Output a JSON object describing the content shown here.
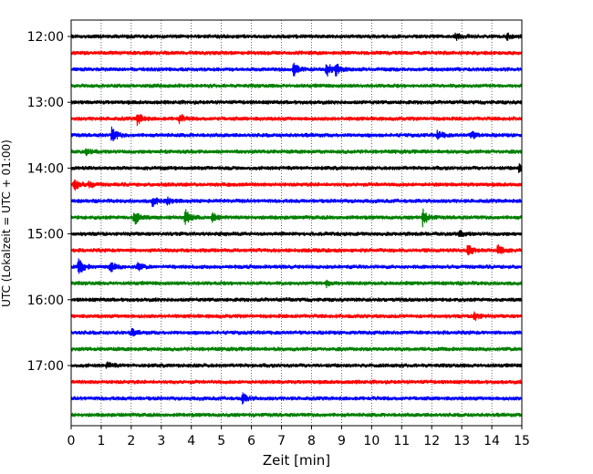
{
  "chart_data": {
    "type": "line",
    "title": "",
    "xlabel": "Zeit  [min]",
    "ylabel": "UTC (Lokalzeit = UTC + 01:00)",
    "xlim": [
      0,
      15
    ],
    "x_ticks": [
      0,
      1,
      2,
      3,
      4,
      5,
      6,
      7,
      8,
      9,
      10,
      11,
      12,
      13,
      14,
      15
    ],
    "x_tick_labels": [
      "0",
      "1",
      "2",
      "3",
      "4",
      "5",
      "6",
      "7",
      "8",
      "9",
      "10",
      "11",
      "12",
      "13",
      "14",
      "15"
    ],
    "y_tick_labels": [
      "12:00",
      "13:00",
      "14:00",
      "15:00",
      "16:00",
      "17:00"
    ],
    "trace_interval_minutes": 15,
    "grid": "vertical dotted",
    "colors": [
      "#000000",
      "#ff0000",
      "#0000ff",
      "#008000"
    ],
    "traces": [
      {
        "start": "12:00",
        "color": "#000000",
        "events": [
          [
            12.8,
            0.5
          ],
          [
            14.5,
            0.4
          ]
        ]
      },
      {
        "start": "12:15",
        "color": "#ff0000",
        "events": []
      },
      {
        "start": "12:30",
        "color": "#0000ff",
        "events": [
          [
            7.4,
            0.8
          ],
          [
            8.5,
            1.0
          ],
          [
            8.8,
            0.7
          ]
        ]
      },
      {
        "start": "12:45",
        "color": "#008000",
        "events": []
      },
      {
        "start": "13:00",
        "color": "#000000",
        "events": []
      },
      {
        "start": "13:15",
        "color": "#ff0000",
        "events": [
          [
            2.2,
            0.8
          ],
          [
            3.6,
            0.6
          ]
        ]
      },
      {
        "start": "13:30",
        "color": "#0000ff",
        "events": [
          [
            1.35,
            1.0
          ],
          [
            12.2,
            0.6
          ],
          [
            13.3,
            0.5
          ]
        ]
      },
      {
        "start": "13:45",
        "color": "#008000",
        "events": [
          [
            0.5,
            0.4
          ]
        ]
      },
      {
        "start": "14:00",
        "color": "#000000",
        "events": [
          [
            14.9,
            0.5
          ]
        ]
      },
      {
        "start": "14:15",
        "color": "#ff0000",
        "events": [
          [
            0.1,
            0.9
          ],
          [
            0.6,
            0.4
          ]
        ]
      },
      {
        "start": "14:30",
        "color": "#0000ff",
        "events": [
          [
            2.7,
            0.6
          ],
          [
            3.2,
            0.4
          ]
        ]
      },
      {
        "start": "14:45",
        "color": "#008000",
        "events": [
          [
            2.1,
            1.0
          ],
          [
            3.8,
            1.0
          ],
          [
            4.7,
            0.6
          ],
          [
            11.7,
            1.0
          ]
        ]
      },
      {
        "start": "15:00",
        "color": "#000000",
        "events": [
          [
            12.9,
            0.4
          ]
        ]
      },
      {
        "start": "15:15",
        "color": "#ff0000",
        "events": [
          [
            13.2,
            0.9
          ],
          [
            14.2,
            0.9
          ]
        ]
      },
      {
        "start": "15:30",
        "color": "#0000ff",
        "events": [
          [
            0.25,
            1.0
          ],
          [
            1.3,
            0.7
          ],
          [
            2.2,
            0.5
          ]
        ]
      },
      {
        "start": "15:45",
        "color": "#008000",
        "events": [
          [
            8.5,
            0.4
          ]
        ]
      },
      {
        "start": "16:00",
        "color": "#000000",
        "events": []
      },
      {
        "start": "16:15",
        "color": "#ff0000",
        "events": [
          [
            13.4,
            0.6
          ]
        ]
      },
      {
        "start": "16:30",
        "color": "#0000ff",
        "events": [
          [
            2.0,
            0.4
          ]
        ]
      },
      {
        "start": "16:45",
        "color": "#008000",
        "events": []
      },
      {
        "start": "17:00",
        "color": "#000000",
        "events": [
          [
            1.2,
            0.4
          ]
        ]
      },
      {
        "start": "17:15",
        "color": "#ff0000",
        "events": []
      },
      {
        "start": "17:30",
        "color": "#0000ff",
        "events": [
          [
            5.7,
            0.6
          ]
        ]
      },
      {
        "start": "17:45",
        "color": "#008000",
        "events": []
      }
    ]
  }
}
